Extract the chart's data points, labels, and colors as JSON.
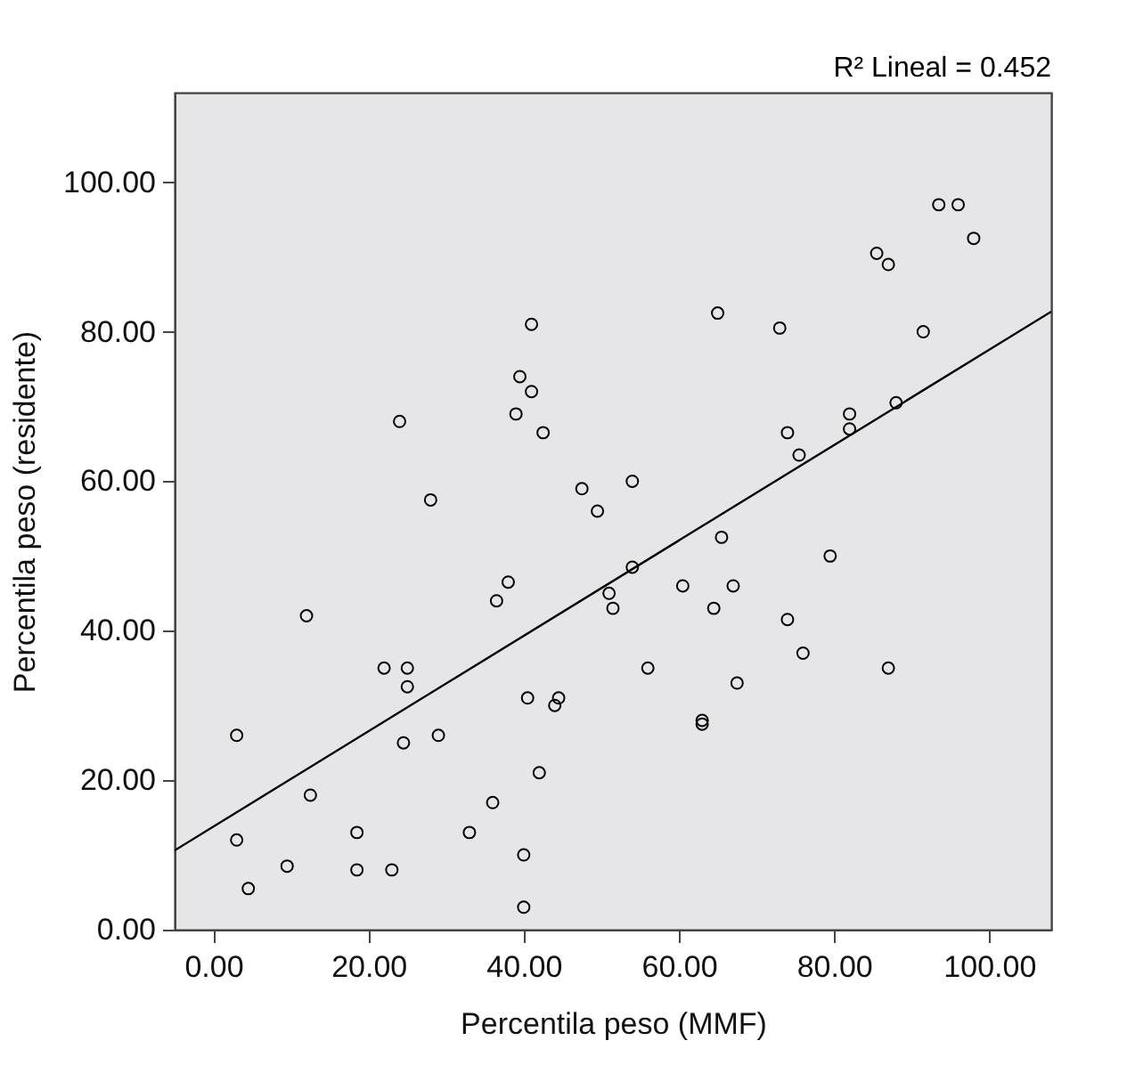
{
  "chart_data": {
    "type": "scatter",
    "xlabel": "Percentila peso (MMF)",
    "ylabel": "Percentila peso (residente)",
    "annotations": [
      "R² Lineal = 0.452"
    ],
    "xlim": [
      -5,
      108
    ],
    "ylim": [
      0,
      112
    ],
    "xticks": [
      {
        "value": 0,
        "label": "0.00"
      },
      {
        "value": 20,
        "label": "20.00"
      },
      {
        "value": 40,
        "label": "40.00"
      },
      {
        "value": 60,
        "label": "60.00"
      },
      {
        "value": 80,
        "label": "80.00"
      },
      {
        "value": 100,
        "label": "100.00"
      }
    ],
    "yticks": [
      {
        "value": 0,
        "label": "0.00"
      },
      {
        "value": 20,
        "label": "20.00"
      },
      {
        "value": 40,
        "label": "40.00"
      },
      {
        "value": 60,
        "label": "60.00"
      },
      {
        "value": 80,
        "label": "80.00"
      },
      {
        "value": 100,
        "label": "100.00"
      }
    ],
    "grid": false,
    "series": [
      {
        "type": "scatter",
        "marker": "circle",
        "color": "#000000",
        "x": [
          3,
          3,
          4.5,
          9.5,
          12,
          12.5,
          18.5,
          18.5,
          22,
          23,
          24,
          24.5,
          25,
          25,
          28,
          29,
          33,
          36,
          36.5,
          38,
          39,
          39.5,
          40,
          40,
          40.5,
          41,
          41,
          42,
          42.5,
          44,
          44.5,
          47.5,
          49.5,
          51,
          51.5,
          54,
          54,
          56,
          60.5,
          63,
          63,
          64.5,
          65,
          65.5,
          67,
          67.5,
          73,
          74,
          74,
          75.5,
          76,
          79.5,
          82,
          82,
          85.5,
          87,
          87,
          88,
          91.5,
          93.5,
          96,
          98
        ],
        "values": [
          26,
          12,
          5.5,
          8.5,
          42,
          18,
          13,
          8,
          35,
          8,
          68,
          25,
          35,
          32.5,
          57.5,
          26,
          13,
          17,
          44,
          46.5,
          69,
          74,
          3,
          10,
          31,
          72,
          81,
          21,
          66.5,
          30,
          31,
          59,
          56,
          45,
          43,
          60,
          48.5,
          35,
          46,
          28,
          27.5,
          43,
          82.5,
          52.5,
          46,
          33,
          80.5,
          66.5,
          41.5,
          63.5,
          37,
          50,
          69,
          67,
          90.5,
          89,
          35,
          70.5,
          80,
          97,
          97,
          92.5
        ]
      },
      {
        "type": "line",
        "marker": "none",
        "color": "#000000",
        "x": [
          -5,
          108
        ],
        "values": [
          10.6,
          82.7
        ]
      }
    ]
  }
}
